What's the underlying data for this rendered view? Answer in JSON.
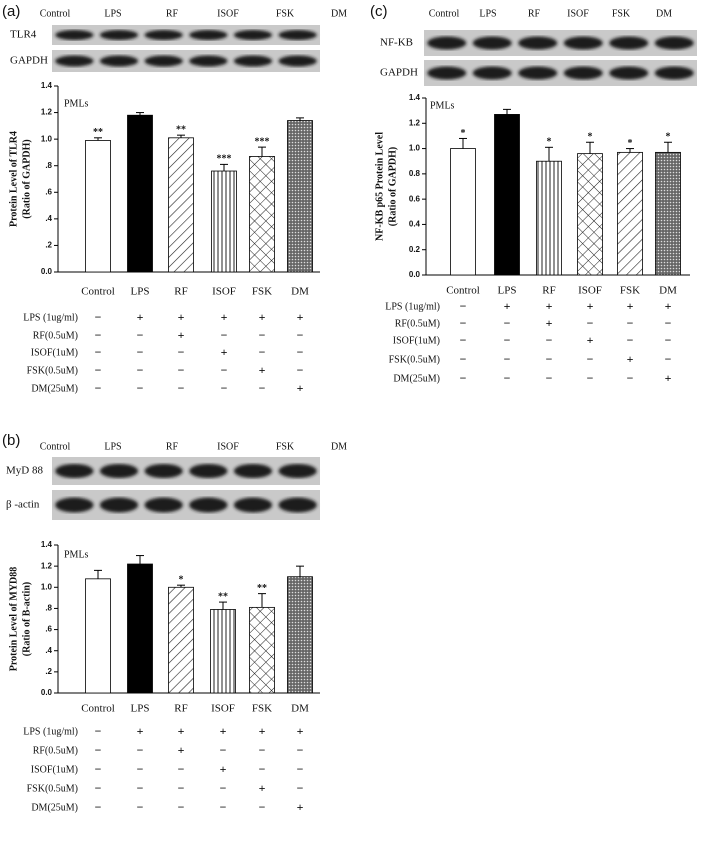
{
  "chart_data": [
    {
      "type": "bar",
      "panel_label": "(a)",
      "annotation": "PMLs",
      "blot_columns": [
        "Control",
        "LPS",
        "RF",
        "ISOF",
        "FSK",
        "DM"
      ],
      "blot_rows": [
        "TLR4",
        "GAPDH"
      ],
      "ylabel": [
        "Protein Level of TLR4",
        "(Ratio of GAPDH)"
      ],
      "categories": [
        "Control",
        "LPS",
        "RF",
        "ISOF",
        "FSK",
        "DM"
      ],
      "values": [
        0.99,
        1.18,
        1.01,
        0.76,
        0.87,
        1.14
      ],
      "errors": [
        0.02,
        0.02,
        0.02,
        0.05,
        0.07,
        0.02
      ],
      "significance": [
        "**",
        null,
        "**",
        "***",
        "***",
        null
      ],
      "fills": [
        "white",
        "black",
        "diagonal",
        "vertical",
        "cross",
        "dots"
      ],
      "ylim": [
        0,
        1.4
      ],
      "yticks": [
        {
          "value": 0,
          "label": "0.0"
        },
        {
          "value": 0.2,
          "label": ".2"
        },
        {
          "value": 0.4,
          "label": ".4"
        },
        {
          "value": 0.6,
          "label": ".6"
        },
        {
          "value": 0.8,
          "label": ".8"
        },
        {
          "value": 1.0,
          "label": "1.0"
        },
        1.2,
        1.4
      ],
      "treatments": [
        {
          "label": "LPS (1ug/ml)",
          "marks": [
            "−",
            "+",
            "+",
            "+",
            "+",
            "+"
          ]
        },
        {
          "label": "RF(0.5uM)",
          "marks": [
            "−",
            "−",
            "+",
            "−",
            "−",
            "−"
          ]
        },
        {
          "label": "ISOF(1uM)",
          "marks": [
            "−",
            "−",
            "−",
            "+",
            "−",
            "−"
          ]
        },
        {
          "label": "FSK(0.5uM)",
          "marks": [
            "−",
            "−",
            "−",
            "−",
            "+",
            "−"
          ]
        },
        {
          "label": "DM(25uM)",
          "marks": [
            "−",
            "−",
            "−",
            "−",
            "−",
            "+"
          ]
        }
      ]
    },
    {
      "type": "bar",
      "panel_label": "(b)",
      "annotation": "PMLs",
      "blot_columns": [
        "Control",
        "LPS",
        "RF",
        "ISOF",
        "FSK",
        "DM"
      ],
      "blot_rows": [
        "MyD 88",
        "β -actin"
      ],
      "ylabel": [
        "Protein Level of MYD88",
        "(Ratio of B-actin)"
      ],
      "categories": [
        "Control",
        "LPS",
        "RF",
        "ISOF",
        "FSK",
        "DM"
      ],
      "values": [
        1.08,
        1.22,
        1.0,
        0.79,
        0.81,
        1.1
      ],
      "errors": [
        0.08,
        0.08,
        0.02,
        0.07,
        0.13,
        0.1
      ],
      "significance": [
        null,
        null,
        "*",
        "**",
        "**",
        null
      ],
      "fills": [
        "white",
        "black",
        "diagonal",
        "vertical",
        "cross",
        "dots"
      ],
      "ylim": [
        0,
        1.4
      ],
      "yticks": [
        {
          "value": 0,
          "label": "0.0"
        },
        {
          "value": 0.2,
          "label": ".2"
        },
        {
          "value": 0.4,
          "label": ".4"
        },
        {
          "value": 0.6,
          "label": ".6"
        },
        {
          "value": 0.8,
          "label": ".8"
        },
        {
          "value": 1.0,
          "label": "1.0"
        },
        1.2,
        1.4
      ],
      "treatments": [
        {
          "label": "LPS (1ug/ml)",
          "marks": [
            "−",
            "+",
            "+",
            "+",
            "+",
            "+"
          ]
        },
        {
          "label": "RF(0.5uM)",
          "marks": [
            "−",
            "−",
            "+",
            "−",
            "−",
            "−"
          ]
        },
        {
          "label": "ISOF(1uM)",
          "marks": [
            "−",
            "−",
            "−",
            "+",
            "−",
            "−"
          ]
        },
        {
          "label": "FSK(0.5uM)",
          "marks": [
            "−",
            "−",
            "−",
            "−",
            "+",
            "−"
          ]
        },
        {
          "label": "DM(25uM)",
          "marks": [
            "−",
            "−",
            "−",
            "−",
            "−",
            "+"
          ]
        }
      ]
    },
    {
      "type": "bar",
      "panel_label": "(c)",
      "annotation": "PMLs",
      "blot_columns": [
        "Control",
        "LPS",
        "RF",
        "ISOF",
        "FSK",
        "DM"
      ],
      "blot_rows": [
        "NF-KB",
        "GAPDH"
      ],
      "ylabel": [
        "NF-KB p65 Protein Level",
        "(Ratio of GAPDH)"
      ],
      "categories": [
        "Control",
        "LPS",
        "RF",
        "ISOF",
        "FSK",
        "DM"
      ],
      "values": [
        1.0,
        1.27,
        0.9,
        0.96,
        0.97,
        0.97
      ],
      "errors": [
        0.08,
        0.04,
        0.11,
        0.09,
        0.03,
        0.08
      ],
      "significance": [
        "*",
        null,
        "*",
        "*",
        "*",
        "*"
      ],
      "fills": [
        "white",
        "black",
        "vertical",
        "cross",
        "diagonal",
        "dots"
      ],
      "ylim": [
        0,
        1.4
      ],
      "yticks": [
        {
          "value": 0,
          "label": "0.0"
        },
        {
          "value": 0.2,
          "label": "0.2"
        },
        {
          "value": 0.4,
          "label": "0.4"
        },
        {
          "value": 0.6,
          "label": "0.6"
        },
        {
          "value": 0.8,
          "label": "0.8"
        },
        {
          "value": 1.0,
          "label": "1.0"
        },
        1.2,
        1.4
      ],
      "treatments": [
        {
          "label": "LPS (1ug/ml)",
          "marks": [
            "−",
            "+",
            "+",
            "+",
            "+",
            "+"
          ]
        },
        {
          "label": "RF(0.5uM)",
          "marks": [
            "−",
            "−",
            "+",
            "−",
            "−",
            "−"
          ]
        },
        {
          "label": "ISOF(1uM)",
          "marks": [
            "−",
            "−",
            "−",
            "+",
            "−",
            "−"
          ]
        },
        {
          "label": "FSK(0.5uM)",
          "marks": [
            "−",
            "−",
            "−",
            "−",
            "+",
            "−"
          ]
        },
        {
          "label": "DM(25uM)",
          "marks": [
            "−",
            "−",
            "−",
            "−",
            "−",
            "+"
          ]
        }
      ]
    }
  ]
}
